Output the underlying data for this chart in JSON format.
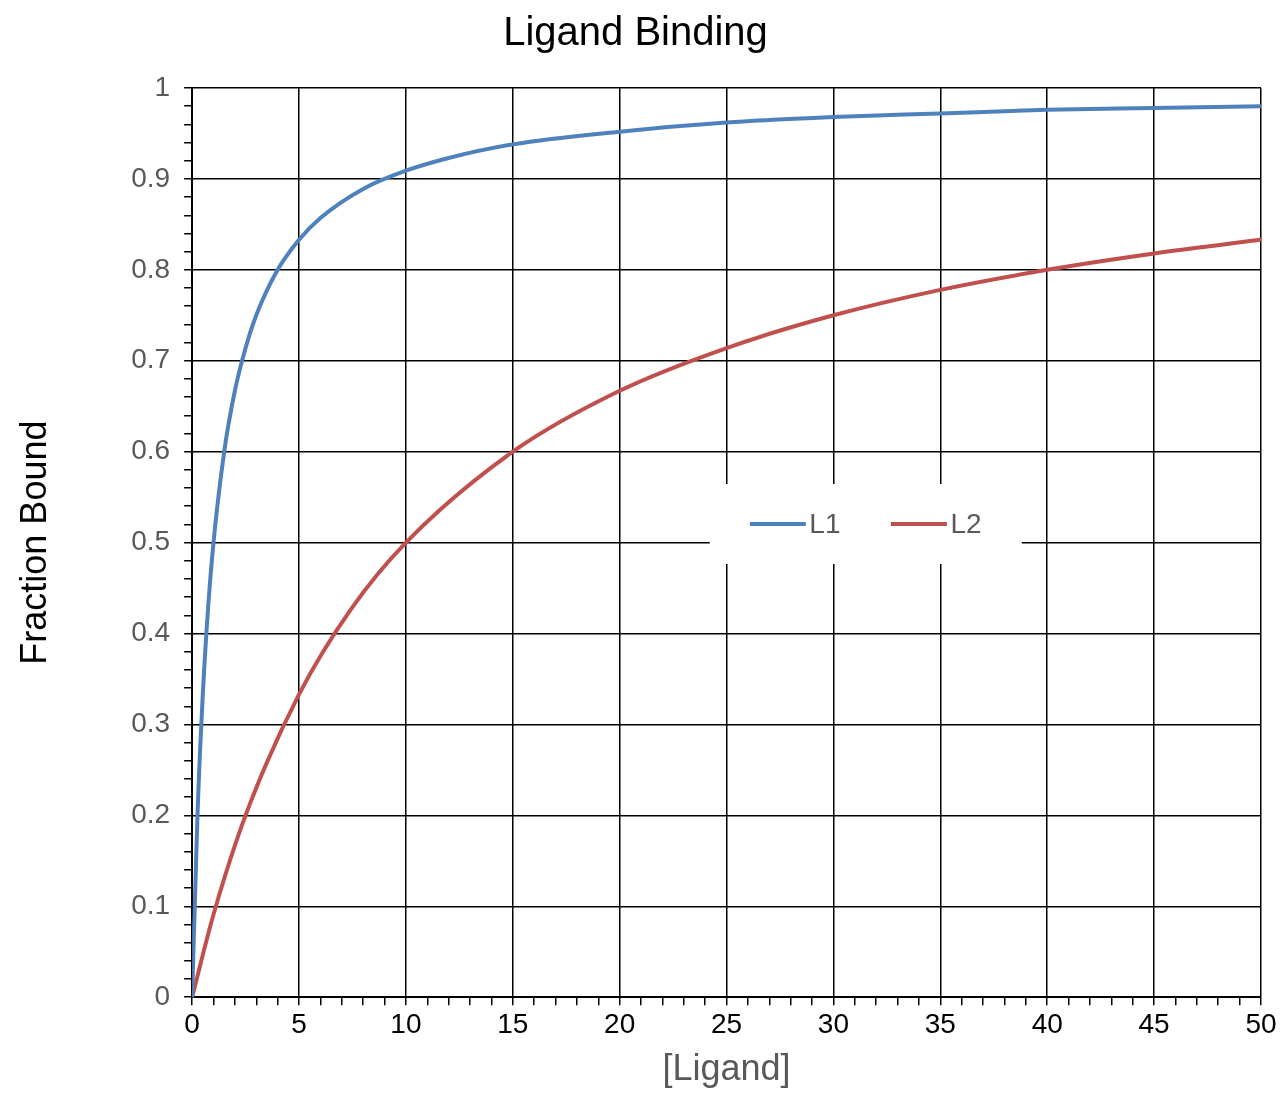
{
  "chart_data": {
    "type": "line",
    "title": "Ligand Binding",
    "xlabel": "[Ligand]",
    "ylabel": "Fraction Bound",
    "xlim": [
      0,
      50
    ],
    "ylim": [
      0,
      1
    ],
    "xticks": [
      0,
      {
        "value": 1,
        "label": null
      },
      {
        "value": 2,
        "label": null
      },
      {
        "value": 3,
        "label": null
      },
      {
        "value": 4,
        "label": null
      },
      5,
      {
        "value": 6,
        "label": null
      },
      {
        "value": 7,
        "label": null
      },
      {
        "value": 8,
        "label": null
      },
      {
        "value": 9,
        "label": null
      },
      10,
      {
        "value": 11,
        "label": null
      },
      {
        "value": 12,
        "label": null
      },
      {
        "value": 13,
        "label": null
      },
      {
        "value": 14,
        "label": null
      },
      15,
      {
        "value": 16,
        "label": null
      },
      {
        "value": 17,
        "label": null
      },
      {
        "value": 18,
        "label": null
      },
      {
        "value": 19,
        "label": null
      },
      20,
      {
        "value": 21,
        "label": null
      },
      {
        "value": 22,
        "label": null
      },
      {
        "value": 23,
        "label": null
      },
      {
        "value": 24,
        "label": null
      },
      25,
      {
        "value": 26,
        "label": null
      },
      {
        "value": 27,
        "label": null
      },
      {
        "value": 28,
        "label": null
      },
      {
        "value": 29,
        "label": null
      },
      30,
      {
        "value": 31,
        "label": null
      },
      {
        "value": 32,
        "label": null
      },
      {
        "value": 33,
        "label": null
      },
      {
        "value": 34,
        "label": null
      },
      35,
      {
        "value": 36,
        "label": null
      },
      {
        "value": 37,
        "label": null
      },
      {
        "value": 38,
        "label": null
      },
      {
        "value": 39,
        "label": null
      },
      40,
      {
        "value": 41,
        "label": null
      },
      {
        "value": 42,
        "label": null
      },
      {
        "value": 43,
        "label": null
      },
      {
        "value": 44,
        "label": null
      },
      45,
      {
        "value": 46,
        "label": null
      },
      {
        "value": 47,
        "label": null
      },
      {
        "value": 48,
        "label": null
      },
      {
        "value": 49,
        "label": null
      },
      50
    ],
    "yticks": [
      0,
      {
        "value": 0.02,
        "label": null
      },
      {
        "value": 0.04,
        "label": null
      },
      {
        "value": 0.06,
        "label": null
      },
      {
        "value": 0.08,
        "label": null
      },
      0.1,
      {
        "value": 0.12,
        "label": null
      },
      {
        "value": 0.14,
        "label": null
      },
      {
        "value": 0.16,
        "label": null
      },
      {
        "value": 0.18,
        "label": null
      },
      0.2,
      {
        "value": 0.22,
        "label": null
      },
      {
        "value": 0.24,
        "label": null
      },
      {
        "value": 0.26,
        "label": null
      },
      {
        "value": 0.28,
        "label": null
      },
      0.3,
      {
        "value": 0.32,
        "label": null
      },
      {
        "value": 0.34,
        "label": null
      },
      {
        "value": 0.36,
        "label": null
      },
      {
        "value": 0.38,
        "label": null
      },
      0.4,
      {
        "value": 0.42,
        "label": null
      },
      {
        "value": 0.44,
        "label": null
      },
      {
        "value": 0.46,
        "label": null
      },
      {
        "value": 0.48,
        "label": null
      },
      0.5,
      {
        "value": 0.52,
        "label": null
      },
      {
        "value": 0.54,
        "label": null
      },
      {
        "value": 0.56,
        "label": null
      },
      {
        "value": 0.58,
        "label": null
      },
      0.6,
      {
        "value": 0.62,
        "label": null
      },
      {
        "value": 0.64,
        "label": null
      },
      {
        "value": 0.66,
        "label": null
      },
      {
        "value": 0.68,
        "label": null
      },
      0.7,
      {
        "value": 0.72,
        "label": null
      },
      {
        "value": 0.74,
        "label": null
      },
      {
        "value": 0.76,
        "label": null
      },
      {
        "value": 0.78,
        "label": null
      },
      0.8,
      {
        "value": 0.82,
        "label": null
      },
      {
        "value": 0.84,
        "label": null
      },
      {
        "value": 0.86,
        "label": null
      },
      {
        "value": 0.88,
        "label": null
      },
      0.9,
      {
        "value": 0.92,
        "label": null
      },
      {
        "value": 0.94,
        "label": null
      },
      {
        "value": 0.96,
        "label": null
      },
      {
        "value": 0.98,
        "label": null
      },
      1
    ],
    "grid": true,
    "legend": "center",
    "marker": "none",
    "line_style": "solid",
    "series": [
      {
        "name": "L1",
        "color": "#4f81bd",
        "x": [
          0,
          0.25,
          0.5,
          0.75,
          1,
          1.5,
          2,
          2.5,
          3,
          4,
          5,
          6,
          8,
          10,
          12,
          15,
          20,
          25,
          30,
          35,
          40,
          45,
          50
        ],
        "values": [
          0,
          0.2,
          0.333,
          0.429,
          0.5,
          0.6,
          0.667,
          0.714,
          0.75,
          0.8,
          0.833,
          0.857,
          0.889,
          0.909,
          0.923,
          0.938,
          0.952,
          0.962,
          0.968,
          0.972,
          0.976,
          0.978,
          0.98
        ]
      },
      {
        "name": "L2",
        "color": "#c0504d",
        "x": [
          0,
          1,
          2.5,
          5,
          7.5,
          10,
          15,
          20,
          25,
          30,
          35,
          40,
          45,
          50
        ],
        "values": [
          0,
          0.091,
          0.2,
          0.333,
          0.429,
          0.5,
          0.6,
          0.667,
          0.714,
          0.75,
          0.778,
          0.8,
          0.818,
          0.833
        ]
      }
    ]
  }
}
